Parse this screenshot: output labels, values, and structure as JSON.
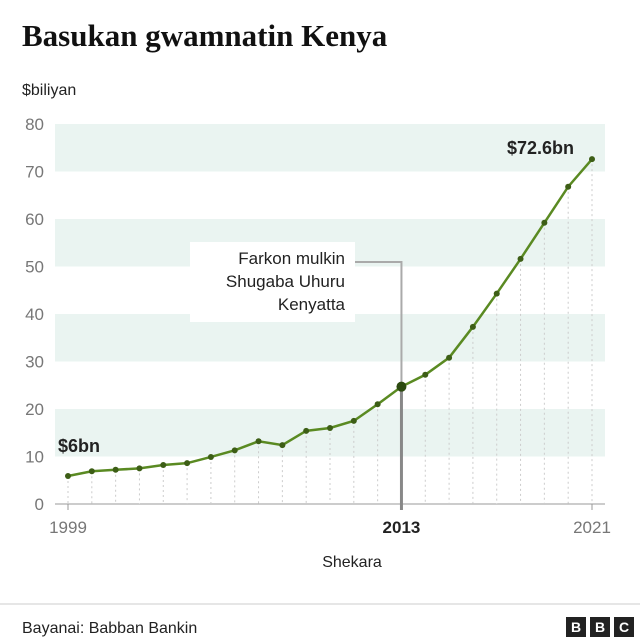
{
  "chart_data": {
    "type": "line",
    "title": "Basukan gwamnatin Kenya",
    "ylabel": "$biliyan",
    "xlabel": "Shekara",
    "source": "Bayanai: Babban Bankin",
    "logo": [
      "B",
      "B",
      "C"
    ],
    "x": [
      1999,
      2000,
      2001,
      2002,
      2003,
      2004,
      2005,
      2006,
      2007,
      2008,
      2009,
      2010,
      2011,
      2012,
      2013,
      2014,
      2015,
      2016,
      2017,
      2018,
      2019,
      2020,
      2021
    ],
    "series": [
      {
        "name": "Basuka",
        "color": "#5a8a22",
        "values": [
          5.9,
          6.9,
          7.2,
          7.5,
          8.2,
          8.6,
          9.9,
          11.3,
          13.2,
          12.4,
          15.4,
          16.0,
          17.5,
          21.0,
          24.7,
          27.2,
          30.8,
          37.3,
          44.3,
          51.6,
          59.2,
          66.8,
          72.6
        ],
        "value_labels": [
          "$6bn",
          null,
          null,
          null,
          null,
          null,
          null,
          null,
          null,
          null,
          null,
          null,
          null,
          null,
          null,
          null,
          null,
          null,
          null,
          null,
          null,
          null,
          "$72.6bn"
        ]
      }
    ],
    "xlim": [
      1999,
      2021
    ],
    "xticks": [
      1999,
      2013,
      2021
    ],
    "ylim": [
      0,
      80
    ],
    "yticks": [
      0,
      10,
      20,
      30,
      40,
      50,
      60,
      70,
      80
    ],
    "annotation": {
      "lines": [
        "Farkon mulkin",
        "Shugaba Uhuru",
        "Kenyatta"
      ],
      "x": 2013
    }
  }
}
